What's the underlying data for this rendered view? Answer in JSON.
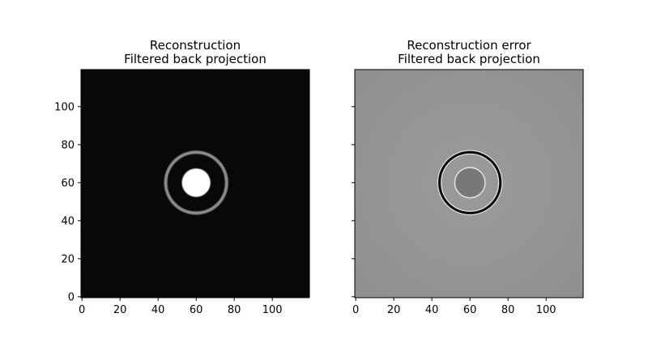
{
  "chart_data": [
    {
      "type": "heatmap",
      "title": [
        "Reconstruction",
        "Filtered back projection"
      ],
      "xlabel": "",
      "ylabel": "",
      "colormap": "gray",
      "image_size": [
        120,
        120
      ],
      "xlim": [
        -0.5,
        119.5
      ],
      "ylim": [
        119.5,
        -0.5
      ],
      "xticks": [
        0,
        20,
        40,
        60,
        80,
        100
      ],
      "yticks": [
        0,
        20,
        40,
        60,
        80,
        100
      ],
      "show_xticklabels": true,
      "show_yticklabels": true,
      "background_level": "#080808",
      "features": [
        {
          "shape": "disk",
          "center": [
            60,
            60
          ],
          "radius": 7.5,
          "level": "#ffffff"
        },
        {
          "shape": "ring",
          "center": [
            60,
            60
          ],
          "radius": 16,
          "level": "#8c8c8c"
        }
      ]
    },
    {
      "type": "heatmap",
      "title": [
        "Reconstruction error",
        "Filtered back projection"
      ],
      "xlabel": "",
      "ylabel": "",
      "colormap": "gray",
      "image_size": [
        120,
        120
      ],
      "xlim": [
        -0.5,
        119.5
      ],
      "ylim": [
        119.5,
        -0.5
      ],
      "xticks": [
        0,
        20,
        40,
        60,
        80,
        100
      ],
      "yticks": [
        0,
        20,
        40,
        60,
        80,
        100
      ],
      "show_xticklabels": true,
      "show_yticklabels": false,
      "background_level": "#969696",
      "features": [
        {
          "shape": "disk",
          "center": [
            60,
            60
          ],
          "radius": 7.5,
          "level": "#787878"
        },
        {
          "shape": "ring",
          "center": [
            60,
            60
          ],
          "radius": 16,
          "level": "#0a0a0a"
        }
      ]
    }
  ]
}
